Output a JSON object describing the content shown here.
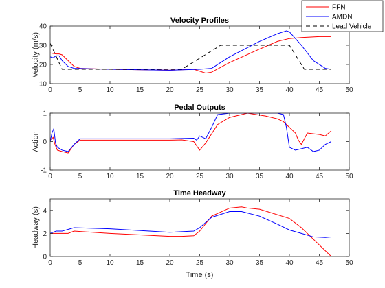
{
  "chart_data": [
    {
      "type": "line",
      "title": "Velocity Profiles",
      "xlabel": "",
      "ylabel": "Velocity (m/s)",
      "xlim": [
        0,
        50
      ],
      "ylim": [
        10,
        40
      ],
      "xticks": [
        "0",
        "5",
        "10",
        "15",
        "20",
        "25",
        "30",
        "35",
        "40",
        "45",
        "50"
      ],
      "yticks": [
        "10",
        "20",
        "30",
        "40"
      ],
      "series": [
        {
          "name": "FFN",
          "color": "#ff0000",
          "dash": "solid",
          "x": [
            0,
            1,
            1.5,
            2,
            3,
            4,
            5,
            10,
            20,
            24,
            26,
            27,
            30,
            35,
            38,
            40,
            42,
            45,
            47
          ],
          "y": [
            26,
            25.5,
            25.5,
            25,
            22,
            19,
            18,
            17.5,
            17,
            17.5,
            15.5,
            16,
            21,
            28,
            32,
            33.5,
            34,
            34.5,
            34.5
          ]
        },
        {
          "name": "AMDN",
          "color": "#0000ff",
          "dash": "solid",
          "x": [
            0,
            0.5,
            1,
            1.5,
            2,
            3,
            4,
            10,
            20,
            25,
            27,
            30,
            35,
            38,
            39.5,
            40,
            42,
            44,
            46,
            47
          ],
          "y": [
            24,
            23.5,
            24.5,
            24.5,
            22,
            19,
            18,
            17.5,
            17,
            17.5,
            18,
            24,
            32,
            36,
            37.5,
            37,
            30,
            22,
            18,
            17.5
          ]
        },
        {
          "name": "Lead Vehicle",
          "color": "#000000",
          "dash": "dashed",
          "x": [
            0,
            2,
            4,
            22,
            28.5,
            40,
            42.5,
            47
          ],
          "y": [
            31,
            17.5,
            17.5,
            17.5,
            30,
            30,
            17.5,
            17.5
          ]
        }
      ]
    },
    {
      "type": "line",
      "title": "Pedal Outputs",
      "xlabel": "",
      "ylabel": "Action",
      "xlim": [
        0,
        50
      ],
      "ylim": [
        -1,
        1
      ],
      "xticks": [
        "0",
        "5",
        "10",
        "15",
        "20",
        "25",
        "30",
        "35",
        "40",
        "45",
        "50"
      ],
      "yticks": [
        "-1",
        "0",
        "1"
      ],
      "series": [
        {
          "name": "FFN",
          "color": "#ff0000",
          "dash": "solid",
          "x": [
            0,
            0.5,
            0.8,
            1.2,
            2,
            3,
            4,
            5,
            10,
            20,
            22,
            24,
            25,
            26,
            28,
            30,
            33,
            36,
            38,
            39,
            40,
            41,
            41.5,
            42,
            43,
            45,
            46,
            47
          ],
          "y": [
            0.05,
            0.15,
            -0.1,
            -0.3,
            -0.35,
            -0.4,
            -0.1,
            0.05,
            0.05,
            0.05,
            0.06,
            0,
            -0.3,
            -0.05,
            0.6,
            0.85,
            1,
            0.9,
            0.8,
            0.7,
            0.5,
            0.3,
            0.05,
            -0.1,
            0.3,
            0.25,
            0.2,
            0.38
          ]
        },
        {
          "name": "AMDN",
          "color": "#0000ff",
          "dash": "solid",
          "x": [
            0,
            0.3,
            0.6,
            0.9,
            1.2,
            2,
            3,
            4,
            5,
            10,
            20,
            24,
            24.5,
            25,
            26,
            27,
            28,
            30,
            35,
            38,
            39,
            39.5,
            40,
            41,
            42,
            43,
            44,
            45,
            46,
            47
          ],
          "y": [
            0,
            0.3,
            0.45,
            -0.05,
            -0.2,
            -0.3,
            -0.35,
            -0.1,
            0.1,
            0.1,
            0.1,
            0.12,
            0.05,
            0.2,
            0.1,
            0.5,
            0.95,
            1,
            1,
            1,
            0.95,
            0.5,
            -0.2,
            -0.3,
            -0.25,
            -0.2,
            -0.35,
            -0.3,
            -0.1,
            0
          ]
        }
      ]
    },
    {
      "type": "line",
      "title": "Time Headway",
      "xlabel": "Time (s)",
      "ylabel": "Headway (s)",
      "xlim": [
        0,
        50
      ],
      "ylim": [
        0,
        5
      ],
      "xticks": [
        "0",
        "5",
        "10",
        "15",
        "20",
        "25",
        "30",
        "35",
        "40",
        "45",
        "50"
      ],
      "yticks": [
        "0",
        "2",
        "4"
      ],
      "series": [
        {
          "name": "FFN",
          "color": "#ff0000",
          "dash": "solid",
          "x": [
            0,
            2,
            3,
            4,
            10,
            20,
            22,
            24,
            25,
            27,
            30,
            32,
            33,
            35,
            40,
            42,
            44,
            46,
            47
          ],
          "y": [
            2.0,
            2.0,
            2.0,
            2.2,
            2.0,
            1.75,
            1.75,
            1.8,
            2.2,
            3.5,
            4.2,
            4.3,
            4.2,
            4.1,
            3.3,
            2.5,
            1.5,
            0.5,
            0
          ]
        },
        {
          "name": "AMDN",
          "color": "#0000ff",
          "dash": "solid",
          "x": [
            0,
            1,
            2,
            4,
            10,
            20,
            24,
            25,
            27,
            30,
            32,
            35,
            38,
            40,
            42,
            44,
            46,
            47
          ],
          "y": [
            2.0,
            2.2,
            2.2,
            2.5,
            2.4,
            2.1,
            2.2,
            2.5,
            3.4,
            3.9,
            3.9,
            3.5,
            2.8,
            2.3,
            2.0,
            1.7,
            1.65,
            1.7
          ]
        }
      ]
    }
  ],
  "legend": {
    "placement": "top-right",
    "entries": [
      "FFN",
      "AMDN",
      "Lead Vehicle"
    ]
  }
}
